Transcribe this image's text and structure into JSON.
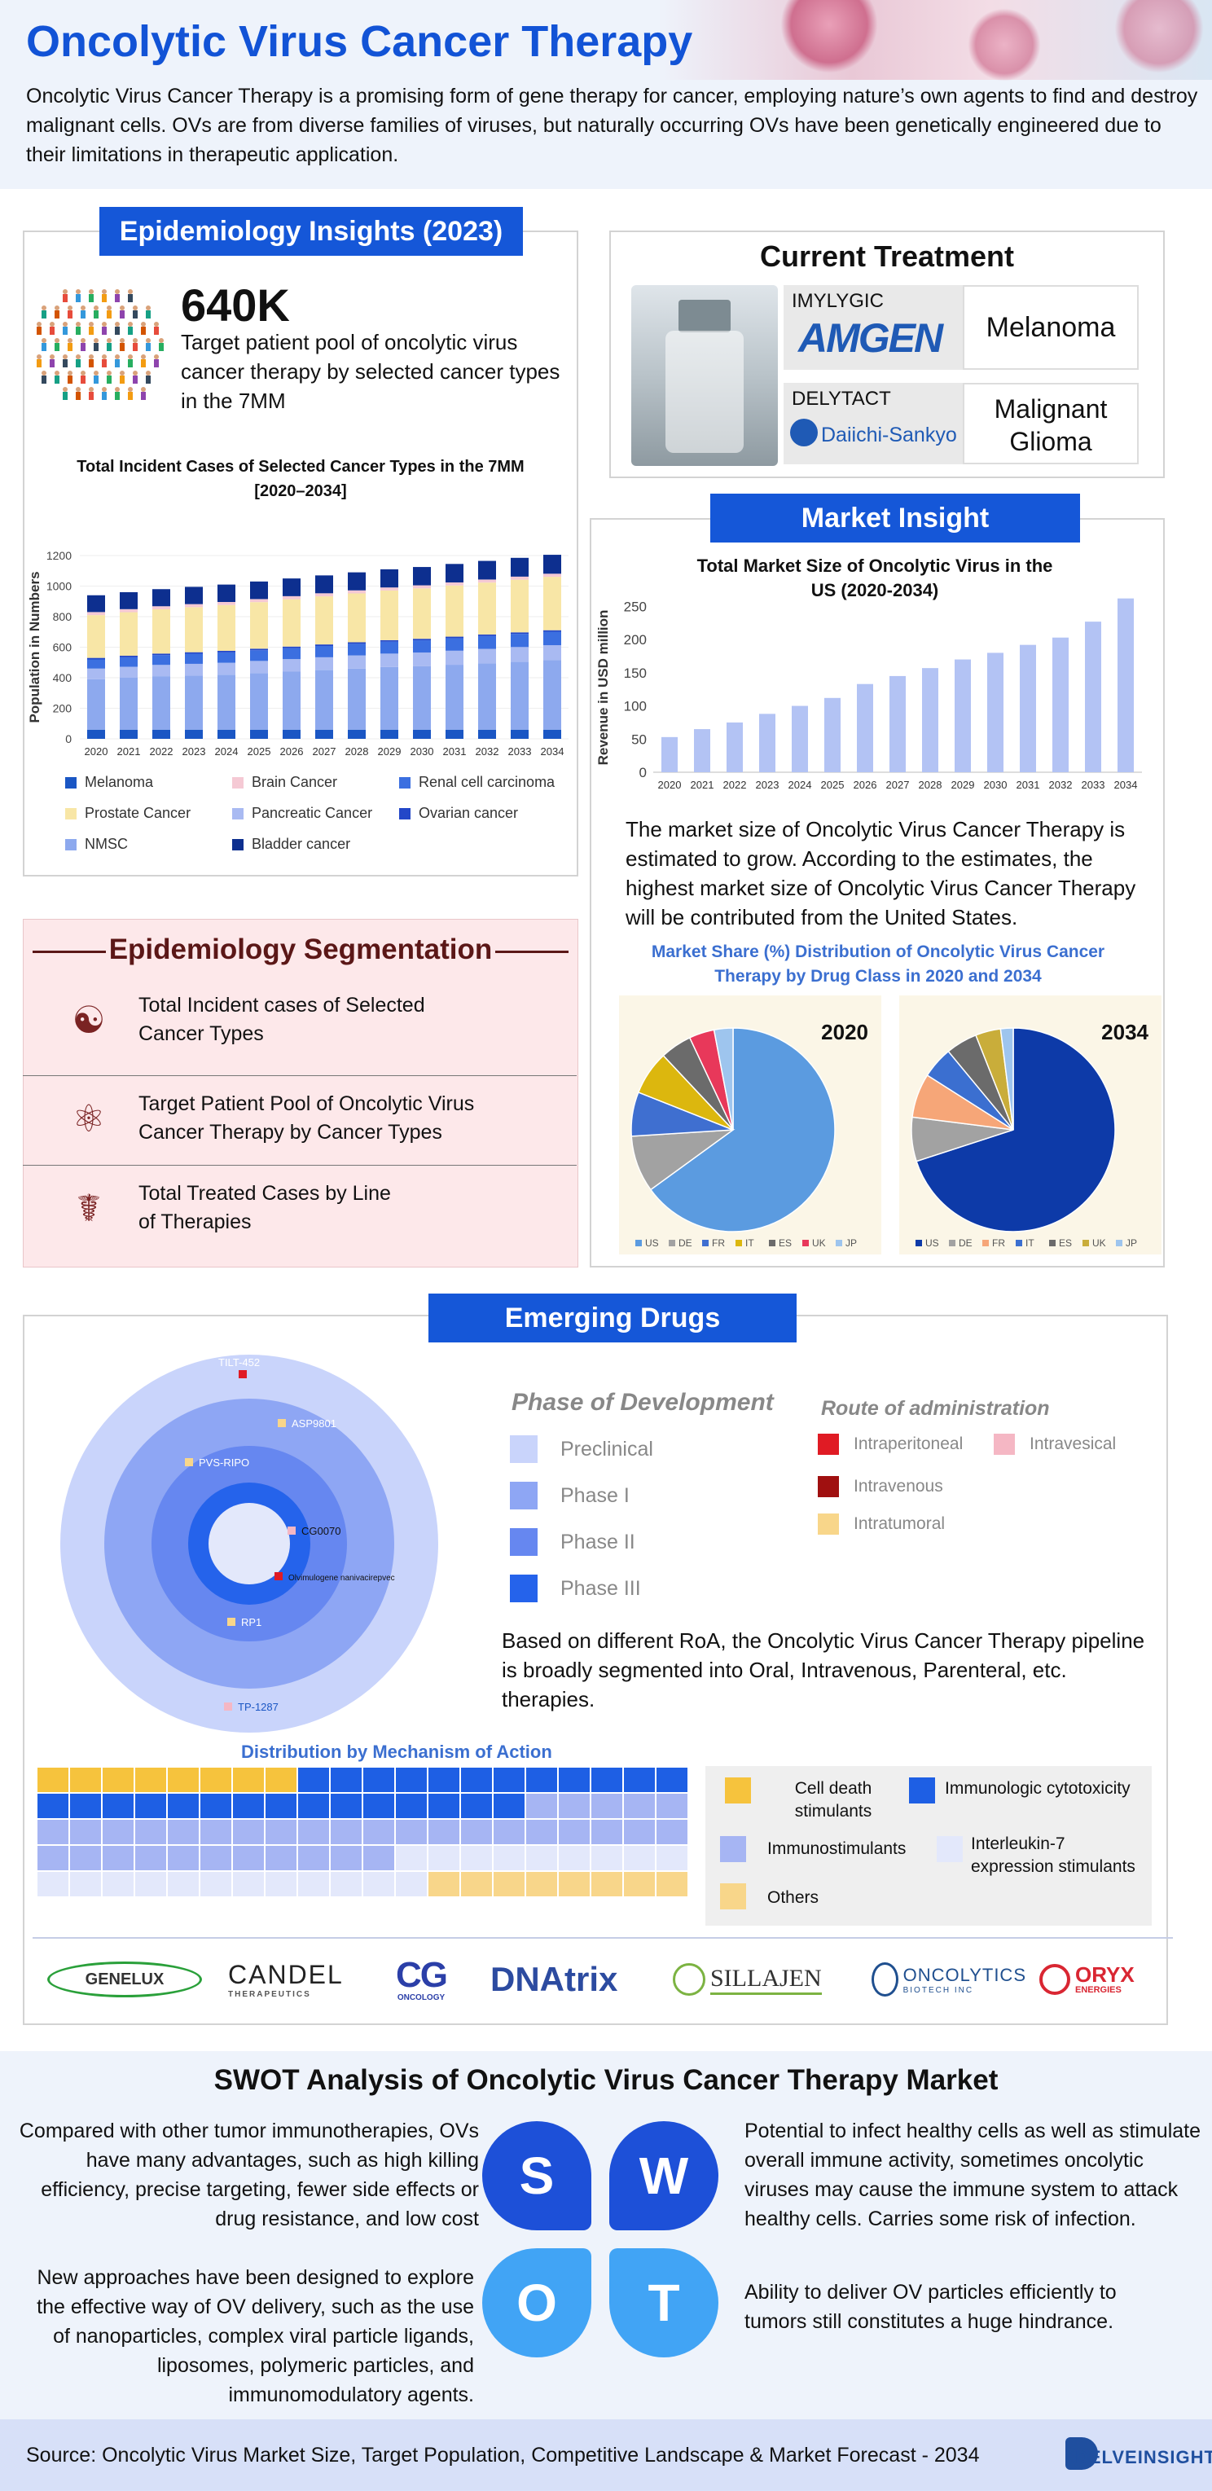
{
  "header": {
    "title": "Oncolytic Virus Cancer Therapy",
    "intro": "Oncolytic Virus Cancer Therapy is a promising form of gene therapy for cancer, employing nature’s own agents to find and destroy malignant cells. OVs are from diverse families of viruses, but naturally occurring OVs have been genetically engineered due to their limitations in therapeutic application."
  },
  "epi_insights": {
    "banner": "Epidemiology Insights (2023)",
    "big_number": "640K",
    "big_text": "Target patient pool of oncolytic virus cancer therapy by selected cancer types in the 7MM",
    "chart_title_1": "Total Incident Cases of Selected Cancer Types in the 7MM",
    "chart_title_2": "[2020–2034]"
  },
  "current_treatment": {
    "title": "Current Treatment",
    "rows": [
      {
        "drug": "IMYLYGIC",
        "company": "AMGEN",
        "indication": "Melanoma"
      },
      {
        "drug": "DELYTACT",
        "company": "Daiichi-Sankyo",
        "indication_1": "Malignant",
        "indication_2": "Glioma"
      }
    ]
  },
  "market_insight": {
    "banner": "Market Insight",
    "chart_title_1": "Total Market Size of Oncolytic Virus in the",
    "chart_title_2": "US (2020-2034)",
    "paragraph": "The market size of Oncolytic Virus Cancer Therapy is estimated to grow. According to the estimates, the highest market size of Oncolytic Virus Cancer Therapy will be contributed from the United States.",
    "pie_title_1": "Market Share (%) Distribution of Oncolytic Virus Cancer",
    "pie_title_2": "Therapy by Drug Class in 2020 and 2034"
  },
  "segmentation": {
    "title": "Epidemiology Segmentation",
    "items": [
      {
        "l1": "Total Incident cases of Selected",
        "l2": "Cancer Types"
      },
      {
        "l1": "Target Patient Pool of Oncolytic Virus",
        "l2": "Cancer Therapy by Cancer Types"
      },
      {
        "l1": "Total Treated Cases by Line",
        "l2": "of  Therapies"
      }
    ]
  },
  "emerging": {
    "banner": "Emerging Drugs",
    "phase_title": "Phase of Development",
    "phases": [
      "Preclinical",
      "Phase I",
      "Phase II",
      "Phase III"
    ],
    "route_title": "Route of administration",
    "routes": [
      "Intraperitoneal",
      "Intravesical",
      "Intravenous",
      "Intratumoral"
    ],
    "drugs": [
      "TILT-452",
      "ASP9801",
      "PVS-RIPO",
      "CG0070",
      "Olvimulogene nanivacirepvec",
      "RP1",
      "TP-1287"
    ],
    "paragraph": "Based on different RoA, the Oncolytic Virus Cancer Therapy pipeline is broadly segmented into Oral, Intravenous, Parenteral, etc. therapies.",
    "moa_title": "Distribution by Mechanism of Action",
    "moa_legend": [
      "Cell death stimulants",
      "Immunologic cytotoxicity",
      "Immunostimulants",
      "Interleukin-7 expression stimulants",
      "Others"
    ]
  },
  "logos": [
    "GENELUX",
    "CANDEL",
    "THERAPEUTICS",
    "CG",
    "ONCOLOGY",
    "DNAtrix",
    "SILLAJEN",
    "ONCOLYTICS",
    "BIOTECH INC",
    "ORYX",
    "ENERGIES"
  ],
  "swot": {
    "title": "SWOT Analysis of Oncolytic Virus Cancer Therapy Market",
    "s": "Compared with other tumor immunotherapies, OVs have many advantages, such as high  killing efficiency, precise targeting, fewer side effects or drug resistance, and low cost",
    "w": "Potential to infect healthy cells as well as stimulate overall immune activity, sometimes oncolytic viruses may cause the immune system to attack healthy cells. Carries some risk of infection.",
    "o": "New approaches have been designed to explore the effective way of OV delivery, such as the use of nanoparticles, complex viral particle ligands, liposomes, polymeric particles, and immunomodulatory agents.",
    "t": "Ability to deliver OV particles efficiently to tumors still constitutes a huge hindrance.",
    "letters": [
      "S",
      "W",
      "O",
      "T"
    ]
  },
  "footer": {
    "source": "Source: Oncolytic Virus Market Size, Target Population, Competitive Landscape & Market Forecast - 2034",
    "brand": "DELVEINSIGHT"
  },
  "chart_data": [
    {
      "type": "bar",
      "title": "Total Incident Cases of Selected Cancer Types in the 7MM [2020–2034]",
      "ylabel": "Population in Numbers",
      "ylim": [
        0,
        1200
      ],
      "categories": [
        "2020",
        "2021",
        "2022",
        "2023",
        "2024",
        "2025",
        "2026",
        "2027",
        "2028",
        "2029",
        "2030",
        "2031",
        "2032",
        "2033",
        "2034"
      ],
      "stacked": true,
      "series": [
        {
          "name": "Melanoma",
          "color": "#1a56c4",
          "values": [
            60,
            60,
            60,
            60,
            60,
            60,
            60,
            60,
            60,
            60,
            60,
            60,
            60,
            60,
            60
          ]
        },
        {
          "name": "NMSC",
          "color": "#8da9ee",
          "values": [
            330,
            340,
            350,
            355,
            360,
            370,
            380,
            390,
            400,
            410,
            415,
            425,
            435,
            445,
            455
          ]
        },
        {
          "name": "Pancreatic Cancer",
          "color": "#a9baf2",
          "values": [
            70,
            72,
            74,
            76,
            78,
            80,
            82,
            84,
            86,
            88,
            90,
            92,
            94,
            96,
            98
          ]
        },
        {
          "name": "Renal cell carcinoma",
          "color": "#3b6fe0",
          "values": [
            60,
            62,
            64,
            66,
            68,
            70,
            72,
            74,
            76,
            78,
            80,
            82,
            84,
            86,
            88
          ]
        },
        {
          "name": "Ovarian cancer",
          "color": "#2347c8",
          "values": [
            10,
            10,
            10,
            10,
            10,
            10,
            10,
            10,
            10,
            10,
            10,
            10,
            10,
            10,
            10
          ]
        },
        {
          "name": "Prostate Cancer",
          "color": "#f8e6a6",
          "values": [
            280,
            285,
            290,
            295,
            300,
            305,
            310,
            315,
            320,
            325,
            330,
            335,
            340,
            345,
            350
          ]
        },
        {
          "name": "Brain Cancer",
          "color": "#f5c9d4",
          "values": [
            20,
            20,
            20,
            20,
            20,
            20,
            20,
            20,
            20,
            20,
            20,
            20,
            20,
            20,
            20
          ]
        },
        {
          "name": "Bladder cancer",
          "color": "#0d2f8f",
          "values": [
            110,
            111,
            112,
            113,
            114,
            115,
            116,
            117,
            118,
            119,
            120,
            121,
            122,
            123,
            124
          ]
        }
      ]
    },
    {
      "type": "bar",
      "title": "Total Market Size of Oncolytic Virus in the US (2020-2034)",
      "ylabel": "Revenue in USD million",
      "ylim": [
        0,
        250
      ],
      "categories": [
        "2020",
        "2021",
        "2022",
        "2023",
        "2024",
        "2025",
        "2026",
        "2027",
        "2028",
        "2029",
        "2030",
        "2031",
        "2032",
        "2033",
        "2034"
      ],
      "values": [
        53,
        65,
        75,
        88,
        100,
        112,
        133,
        145,
        157,
        170,
        180,
        192,
        203,
        227,
        262
      ],
      "color": "#b3c3f4"
    },
    {
      "type": "pie",
      "title": "2020",
      "labels": [
        "US",
        "DE",
        "FR",
        "IT",
        "ES",
        "UK",
        "JP"
      ],
      "values": [
        65,
        9,
        7,
        7,
        5,
        4,
        3
      ],
      "colors": [
        "#5b9be0",
        "#a2a2a2",
        "#3f6fd0",
        "#dcb70e",
        "#6b6b6b",
        "#e8385a",
        "#9ec5ee"
      ]
    },
    {
      "type": "pie",
      "title": "2034",
      "labels": [
        "US",
        "DE",
        "FR",
        "IT",
        "ES",
        "UK",
        "JP"
      ],
      "values": [
        70,
        7,
        7,
        5,
        5,
        4,
        2
      ],
      "colors": [
        "#0d3aa8",
        "#a2a2a2",
        "#f6a678",
        "#3b6fd0",
        "#6b6b6b",
        "#c9ad3a",
        "#9ec5ee"
      ]
    }
  ]
}
